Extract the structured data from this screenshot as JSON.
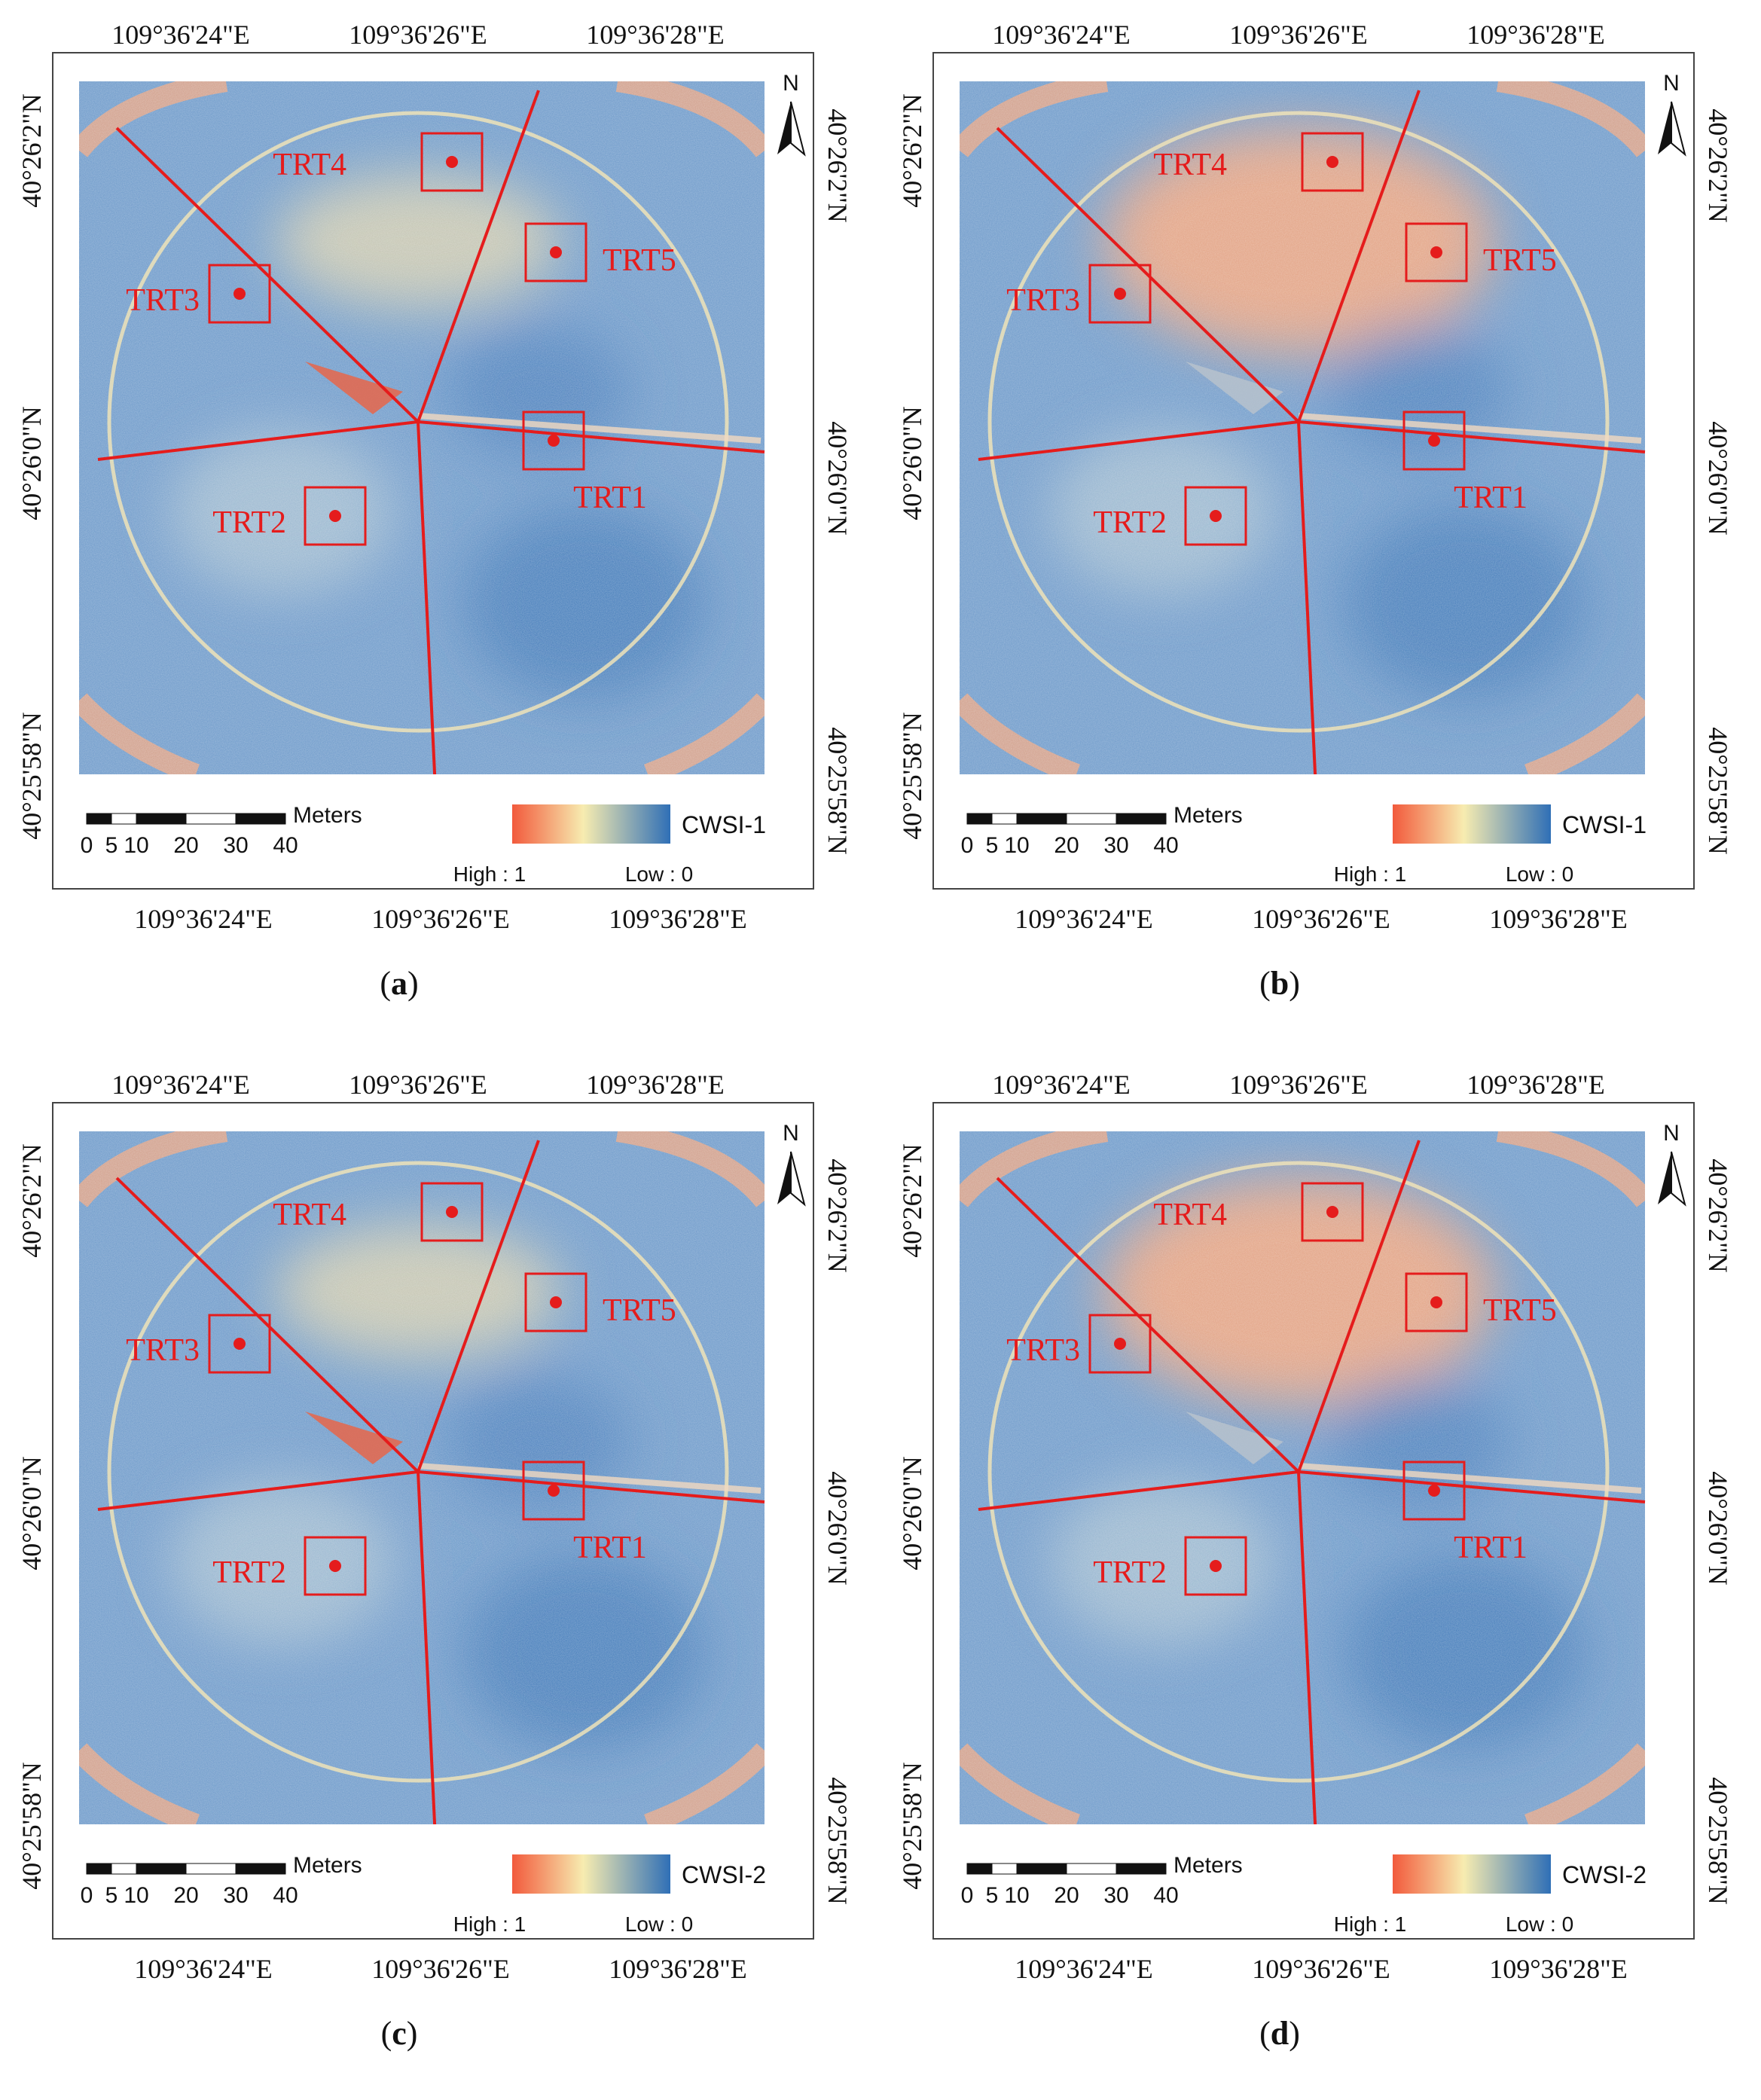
{
  "panels": [
    {
      "id": "a",
      "caption": "a",
      "index_label": "CWSI-1",
      "lon_labels_top": [
        "109°36'24\"E",
        "109°36'26\"E",
        "109°36'28\"E"
      ],
      "lon_labels_bottom": [
        "109°36'24\"E",
        "109°36'26\"E",
        "109°36'28\"E"
      ],
      "lat_labels_left": [
        "40°26'2\"N",
        "40°26'0\"N",
        "40°25'58\"N"
      ],
      "lat_labels_right": [
        "40°26'2\"N",
        "40°26'0\"N",
        "40°25'58\"N"
      ],
      "legend_high": "High : 1",
      "legend_low": "Low : 0",
      "scale_unit": "Meters",
      "scale_ticks": [
        "0",
        "5",
        "10",
        "20",
        "30",
        "40"
      ],
      "north": "N",
      "treatments": [
        "TRT1",
        "TRT2",
        "TRT3",
        "TRT4",
        "TRT5"
      ]
    },
    {
      "id": "b",
      "caption": "b",
      "index_label": "CWSI-1",
      "lon_labels_top": [
        "109°36'24\"E",
        "109°36'26\"E",
        "109°36'28\"E"
      ],
      "lon_labels_bottom": [
        "109°36'24\"E",
        "109°36'26\"E",
        "109°36'28\"E"
      ],
      "lat_labels_left": [
        "40°26'2\"N",
        "40°26'0\"N",
        "40°25'58\"N"
      ],
      "lat_labels_right": [
        "40°26'2\"N",
        "40°26'0\"N",
        "40°25'58\"N"
      ],
      "legend_high": "High : 1",
      "legend_low": "Low : 0",
      "scale_unit": "Meters",
      "scale_ticks": [
        "0",
        "5",
        "10",
        "20",
        "30",
        "40"
      ],
      "north": "N",
      "treatments": [
        "TRT1",
        "TRT2",
        "TRT3",
        "TRT4",
        "TRT5"
      ]
    },
    {
      "id": "c",
      "caption": "c",
      "index_label": "CWSI-2",
      "lon_labels_top": [
        "109°36'24\"E",
        "109°36'26\"E",
        "109°36'28\"E"
      ],
      "lon_labels_bottom": [
        "109°36'24\"E",
        "109°36'26\"E",
        "109°36'28\"E"
      ],
      "lat_labels_left": [
        "40°26'2\"N",
        "40°26'0\"N",
        "40°25'58\"N"
      ],
      "lat_labels_right": [
        "40°26'2\"N",
        "40°26'0\"N",
        "40°25'58\"N"
      ],
      "legend_high": "High : 1",
      "legend_low": "Low : 0",
      "scale_unit": "Meters",
      "scale_ticks": [
        "0",
        "5",
        "10",
        "20",
        "30",
        "40"
      ],
      "north": "N",
      "treatments": [
        "TRT1",
        "TRT2",
        "TRT3",
        "TRT4",
        "TRT5"
      ]
    },
    {
      "id": "d",
      "caption": "d",
      "index_label": "CWSI-2",
      "lon_labels_top": [
        "109°36'24\"E",
        "109°36'26\"E",
        "109°36'28\"E"
      ],
      "lon_labels_bottom": [
        "109°36'24\"E",
        "109°36'26\"E",
        "109°36'28\"E"
      ],
      "lat_labels_left": [
        "40°26'2\"N",
        "40°26'0\"N",
        "40°25'58\"N"
      ],
      "lat_labels_right": [
        "40°26'2\"N",
        "40°26'0\"N",
        "40°25'58\"N"
      ],
      "legend_high": "High : 1",
      "legend_low": "Low : 0",
      "scale_unit": "Meters",
      "scale_ticks": [
        "0",
        "5",
        "10",
        "20",
        "30",
        "40"
      ],
      "north": "N",
      "treatments": [
        "TRT1",
        "TRT2",
        "TRT3",
        "TRT4",
        "TRT5"
      ]
    }
  ],
  "colors": {
    "high": "#f25a3c",
    "mid": "#f7ecb0",
    "low": "#2f6fb6",
    "field": "#6b98c9",
    "boundary": "#e51c1c"
  }
}
